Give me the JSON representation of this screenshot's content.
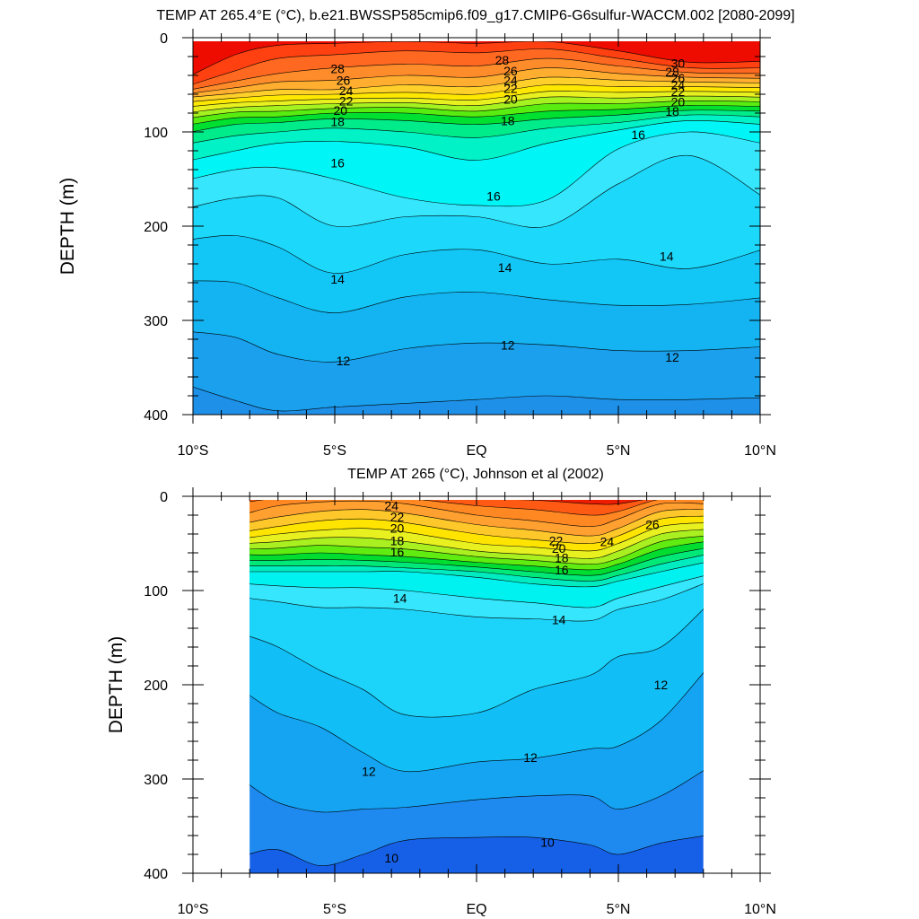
{
  "chart_data": [
    {
      "type": "heatmap",
      "subtype": "filled-contour",
      "title": "TEMP AT 265.4°E (°C), b.e21.BWSSP585cmip6.f09_g17.CMIP6-G6sulfur-WACCM.002 [2080-2099]",
      "ylabel": "DEPTH (m)",
      "xlabel": "",
      "x_range": [
        -10,
        10
      ],
      "y_range": [
        0,
        400
      ],
      "y_reversed": true,
      "x_ticks": [
        -10,
        -5,
        0,
        5,
        10
      ],
      "x_tick_labels": [
        "10°S",
        "5°S",
        "EQ",
        "5°N",
        "10°N"
      ],
      "y_ticks": [
        0,
        100,
        200,
        300,
        400
      ],
      "y_tick_labels": [
        "0",
        "100",
        "200",
        "300",
        "400"
      ],
      "data_extent_x": [
        -10,
        10
      ],
      "levels": [
        12,
        13,
        14,
        15,
        16,
        17,
        18,
        19,
        20,
        21,
        22,
        23,
        24,
        25,
        26,
        27,
        28,
        29,
        30
      ],
      "colors": [
        "#1e90e8",
        "#1aa0ec",
        "#14b4f2",
        "#12c6f6",
        "#1cd8fa",
        "#36e6fc",
        "#00f6f6",
        "#00f2c6",
        "#00ec8a",
        "#00e030",
        "#58ec10",
        "#a6f220",
        "#e8f020",
        "#ffe800",
        "#ffd02a",
        "#ffae30",
        "#ff8c2a",
        "#ff6820",
        "#ff4010",
        "#ee0c00",
        "#cc0000"
      ],
      "profiles": [
        {
          "x": -10,
          "iso": {
            "12": 370,
            "13": 312,
            "14": 258,
            "15": 214,
            "16": 180,
            "17": 150,
            "18": 130,
            "19": 112,
            "20": 100,
            "21": 92,
            "22": 85,
            "23": 79,
            "24": 73,
            "25": 68,
            "26": 63,
            "27": 59,
            "28": 55,
            "29": 50,
            "30": 40
          }
        },
        {
          "x": -8.5,
          "iso": {
            "12": 385,
            "13": 318,
            "14": 260,
            "15": 210,
            "16": 170,
            "17": 140,
            "18": 120,
            "19": 104,
            "20": 92,
            "21": 85,
            "22": 79,
            "23": 74,
            "24": 69,
            "25": 64,
            "26": 59,
            "27": 53,
            "28": 46,
            "29": 35,
            "30": 18
          }
        },
        {
          "x": -7,
          "iso": {
            "12": 396,
            "13": 336,
            "14": 276,
            "15": 222,
            "16": 170,
            "17": 138,
            "18": 112,
            "19": 100,
            "20": 90,
            "21": 84,
            "22": 78,
            "23": 72,
            "24": 67,
            "25": 61,
            "26": 55,
            "27": 47,
            "28": 38,
            "29": 22,
            "30": 8
          }
        },
        {
          "x": -5,
          "iso": {
            "12": 392,
            "13": 344,
            "14": 292,
            "15": 250,
            "16": 200,
            "17": 150,
            "18": 110,
            "19": 96,
            "20": 86,
            "21": 80,
            "22": 75,
            "23": 70,
            "24": 65,
            "25": 60,
            "26": 55,
            "27": 45,
            "28": 32,
            "29": 18,
            "30": 6
          }
        },
        {
          "x": -2.5,
          "iso": {
            "12": 388,
            "13": 330,
            "14": 275,
            "15": 230,
            "16": 190,
            "17": 170,
            "18": 116,
            "19": 100,
            "20": 88,
            "21": 80,
            "22": 74,
            "23": 69,
            "24": 64,
            "25": 58,
            "26": 50,
            "27": 40,
            "28": 28,
            "29": 14,
            "30": 4
          }
        },
        {
          "x": 0,
          "iso": {
            "12": 384,
            "13": 324,
            "14": 270,
            "15": 225,
            "16": 190,
            "17": 178,
            "18": 130,
            "19": 106,
            "20": 92,
            "21": 84,
            "22": 78,
            "23": 72,
            "24": 66,
            "25": 60,
            "26": 52,
            "27": 42,
            "28": 30,
            "29": 16,
            "30": 6
          }
        },
        {
          "x": 2.5,
          "iso": {
            "12": 380,
            "13": 326,
            "14": 278,
            "15": 240,
            "16": 200,
            "17": 172,
            "18": 112,
            "19": 96,
            "20": 86,
            "21": 78,
            "22": 70,
            "23": 63,
            "24": 57,
            "25": 50,
            "26": 42,
            "27": 32,
            "28": 22,
            "29": 12,
            "30": 4
          }
        },
        {
          "x": 5,
          "iso": {
            "12": 384,
            "13": 332,
            "14": 284,
            "15": 235,
            "16": 155,
            "17": 118,
            "18": 98,
            "19": 90,
            "20": 82,
            "21": 76,
            "22": 70,
            "23": 64,
            "24": 58,
            "25": 52,
            "26": 45,
            "27": 38,
            "28": 30,
            "29": 22,
            "30": 14
          }
        },
        {
          "x": 7.5,
          "iso": {
            "12": 384,
            "13": 332,
            "14": 283,
            "15": 245,
            "16": 125,
            "17": 100,
            "18": 88,
            "19": 82,
            "20": 77,
            "21": 72,
            "22": 67,
            "23": 62,
            "24": 57,
            "25": 52,
            "26": 47,
            "27": 42,
            "28": 37,
            "29": 32,
            "30": 26
          }
        },
        {
          "x": 10,
          "iso": {
            "12": 382,
            "13": 328,
            "14": 276,
            "15": 225,
            "16": 168,
            "17": 112,
            "18": 92,
            "19": 84,
            "20": 78,
            "21": 73,
            "22": 68,
            "23": 63,
            "24": 58,
            "25": 53,
            "26": 48,
            "27": 43,
            "28": 38,
            "29": 32,
            "30": 25
          }
        }
      ],
      "contour_labels": [
        {
          "text": "28",
          "x": -4.9,
          "y": 33
        },
        {
          "text": "26",
          "x": -4.7,
          "y": 45
        },
        {
          "text": "24",
          "x": -4.6,
          "y": 56
        },
        {
          "text": "22",
          "x": -4.6,
          "y": 67
        },
        {
          "text": "20",
          "x": -4.8,
          "y": 77
        },
        {
          "text": "18",
          "x": -4.9,
          "y": 89
        },
        {
          "text": "16",
          "x": -4.9,
          "y": 133
        },
        {
          "text": "28",
          "x": 0.9,
          "y": 24
        },
        {
          "text": "26",
          "x": 1.2,
          "y": 35
        },
        {
          "text": "24",
          "x": 1.2,
          "y": 45
        },
        {
          "text": "22",
          "x": 1.2,
          "y": 54
        },
        {
          "text": "20",
          "x": 1.2,
          "y": 65
        },
        {
          "text": "18",
          "x": 1.1,
          "y": 88
        },
        {
          "text": "30",
          "x": 7.1,
          "y": 27
        },
        {
          "text": "28",
          "x": 6.9,
          "y": 36
        },
        {
          "text": "26",
          "x": 7.1,
          "y": 43
        },
        {
          "text": "24",
          "x": 7.1,
          "y": 50
        },
        {
          "text": "22",
          "x": 7.1,
          "y": 57
        },
        {
          "text": "20",
          "x": 7.1,
          "y": 68
        },
        {
          "text": "18",
          "x": 6.9,
          "y": 78
        },
        {
          "text": "16",
          "x": 5.7,
          "y": 103
        },
        {
          "text": "16",
          "x": 0.6,
          "y": 168
        },
        {
          "text": "14",
          "x": -4.9,
          "y": 256
        },
        {
          "text": "14",
          "x": 1.0,
          "y": 244
        },
        {
          "text": "14",
          "x": 6.7,
          "y": 232
        },
        {
          "text": "12",
          "x": -4.7,
          "y": 343
        },
        {
          "text": "12",
          "x": 1.1,
          "y": 326
        },
        {
          "text": "12",
          "x": 6.9,
          "y": 339
        }
      ]
    },
    {
      "type": "heatmap",
      "subtype": "filled-contour",
      "title": "TEMP AT 265 (°C), Johnson et al (2002)",
      "ylabel": "DEPTH (m)",
      "xlabel": "",
      "x_range": [
        -10,
        10
      ],
      "y_range": [
        0,
        400
      ],
      "y_reversed": true,
      "x_ticks": [
        -10,
        -5,
        0,
        5,
        10
      ],
      "x_tick_labels": [
        "10°S",
        "5°S",
        "EQ",
        "5°N",
        "10°N"
      ],
      "y_ticks": [
        0,
        100,
        200,
        300,
        400
      ],
      "y_tick_labels": [
        "0",
        "100",
        "200",
        "300",
        "400"
      ],
      "data_extent_x": [
        -8,
        8
      ],
      "levels": [
        10,
        11,
        12,
        13,
        14,
        15,
        16,
        17,
        18,
        19,
        20,
        21,
        22,
        23,
        24,
        25,
        26,
        27
      ],
      "colors": [
        "#1660e8",
        "#1e8af0",
        "#14a4f2",
        "#12bef6",
        "#1cd4fa",
        "#36e6fc",
        "#00f2f0",
        "#00ecc0",
        "#00e878",
        "#00dc30",
        "#60ec10",
        "#aaf020",
        "#e8f020",
        "#ffe400",
        "#ffc82a",
        "#ffa030",
        "#ff8822",
        "#ff5a14",
        "#ee1c00"
      ],
      "profiles": [
        {
          "x": -8,
          "iso": {
            "10": 380,
            "11": 305,
            "12": 210,
            "13": 148,
            "14": 108,
            "15": 93,
            "16": 80,
            "17": 74,
            "18": 68,
            "19": 62,
            "20": 56,
            "21": 50,
            "22": 44,
            "23": 37,
            "24": 28,
            "25": 18,
            "26": 6,
            "27": 2
          }
        },
        {
          "x": -7,
          "iso": {
            "10": 375,
            "11": 325,
            "12": 230,
            "13": 160,
            "14": 112,
            "15": 95,
            "16": 80,
            "17": 74,
            "18": 68,
            "19": 62,
            "20": 55,
            "21": 48,
            "22": 40,
            "23": 32,
            "24": 22,
            "25": 10,
            "26": 2,
            "27": 1
          }
        },
        {
          "x": -5.5,
          "iso": {
            "10": 392,
            "11": 335,
            "12": 245,
            "13": 185,
            "14": 118,
            "15": 97,
            "16": 80,
            "17": 74,
            "18": 67,
            "19": 60,
            "20": 52,
            "21": 44,
            "22": 36,
            "23": 26,
            "24": 16,
            "25": 6,
            "26": 1,
            "27": 1
          }
        },
        {
          "x": -4,
          "iso": {
            "10": 380,
            "11": 332,
            "12": 272,
            "13": 205,
            "14": 118,
            "15": 97,
            "16": 80,
            "17": 74,
            "18": 68,
            "19": 62,
            "20": 54,
            "21": 44,
            "22": 34,
            "23": 24,
            "24": 14,
            "25": 5,
            "26": 1,
            "27": 1
          }
        },
        {
          "x": -2.5,
          "iso": {
            "10": 365,
            "11": 330,
            "12": 292,
            "13": 232,
            "14": 120,
            "15": 100,
            "16": 80,
            "17": 76,
            "18": 70,
            "19": 64,
            "20": 56,
            "21": 48,
            "22": 38,
            "23": 28,
            "24": 18,
            "25": 8,
            "26": 2,
            "27": 1
          }
        },
        {
          "x": 0,
          "iso": {
            "10": 362,
            "11": 322,
            "12": 282,
            "13": 230,
            "14": 128,
            "15": 108,
            "16": 86,
            "17": 80,
            "18": 75,
            "19": 70,
            "20": 64,
            "21": 58,
            "22": 50,
            "23": 40,
            "24": 30,
            "25": 20,
            "26": 10,
            "27": 3
          }
        },
        {
          "x": 2,
          "iso": {
            "10": 362,
            "11": 318,
            "12": 278,
            "13": 205,
            "14": 130,
            "15": 113,
            "16": 93,
            "17": 86,
            "18": 80,
            "19": 74,
            "20": 68,
            "21": 62,
            "22": 54,
            "23": 46,
            "24": 36,
            "25": 26,
            "26": 14,
            "27": 4
          }
        },
        {
          "x": 4,
          "iso": {
            "10": 370,
            "11": 318,
            "12": 268,
            "13": 190,
            "14": 132,
            "15": 118,
            "16": 96,
            "17": 90,
            "18": 84,
            "19": 78,
            "20": 72,
            "21": 66,
            "22": 58,
            "23": 50,
            "24": 42,
            "25": 32,
            "26": 20,
            "27": 8
          }
        },
        {
          "x": 5,
          "iso": {
            "10": 380,
            "11": 332,
            "12": 265,
            "13": 170,
            "14": 120,
            "15": 108,
            "16": 90,
            "17": 84,
            "18": 78,
            "19": 72,
            "20": 66,
            "21": 58,
            "22": 50,
            "23": 42,
            "24": 34,
            "25": 24,
            "26": 16,
            "27": 8
          }
        },
        {
          "x": 6.5,
          "iso": {
            "10": 368,
            "11": 318,
            "12": 238,
            "13": 160,
            "14": 110,
            "15": 96,
            "16": 80,
            "17": 72,
            "18": 64,
            "19": 56,
            "20": 48,
            "21": 40,
            "22": 32,
            "23": 24,
            "24": 16,
            "25": 8,
            "26": 3,
            "27": 1
          }
        },
        {
          "x": 8,
          "iso": {
            "10": 360,
            "11": 290,
            "12": 185,
            "13": 118,
            "14": 92,
            "15": 84,
            "16": 70,
            "17": 62,
            "18": 55,
            "19": 48,
            "20": 42,
            "21": 35,
            "22": 28,
            "23": 21,
            "24": 14,
            "25": 8,
            "26": 3,
            "27": 1
          }
        }
      ],
      "contour_labels": [
        {
          "text": "24",
          "x": -3.0,
          "y": 10
        },
        {
          "text": "22",
          "x": -2.8,
          "y": 22
        },
        {
          "text": "20",
          "x": -2.8,
          "y": 34
        },
        {
          "text": "18",
          "x": -2.8,
          "y": 47
        },
        {
          "text": "16",
          "x": -2.8,
          "y": 59
        },
        {
          "text": "14",
          "x": -2.7,
          "y": 108
        },
        {
          "text": "22",
          "x": 2.8,
          "y": 47
        },
        {
          "text": "20",
          "x": 2.9,
          "y": 55
        },
        {
          "text": "18",
          "x": 3.0,
          "y": 65
        },
        {
          "text": "16",
          "x": 3.0,
          "y": 78
        },
        {
          "text": "24",
          "x": 4.6,
          "y": 48
        },
        {
          "text": "26",
          "x": 6.2,
          "y": 30
        },
        {
          "text": "14",
          "x": 2.9,
          "y": 131
        },
        {
          "text": "12",
          "x": 6.5,
          "y": 200
        },
        {
          "text": "12",
          "x": 1.9,
          "y": 277
        },
        {
          "text": "12",
          "x": -3.8,
          "y": 292
        },
        {
          "text": "10",
          "x": -3.0,
          "y": 384
        },
        {
          "text": "10",
          "x": 2.5,
          "y": 367
        }
      ]
    }
  ]
}
